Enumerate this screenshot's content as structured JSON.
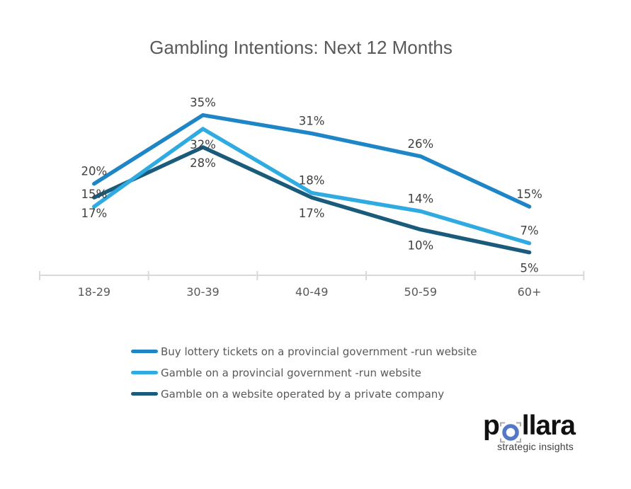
{
  "title": "Gambling Intentions: Next 12 Months",
  "chart_data": {
    "type": "line",
    "title": "Gambling Intentions: Next 12 Months",
    "categories": [
      "18-29",
      "30-39",
      "40-49",
      "50-59",
      "60+"
    ],
    "series": [
      {
        "name": "Buy lottery tickets on a provincial government -run website",
        "color": "#1E86C6",
        "values": [
          20,
          35,
          31,
          26,
          15
        ],
        "label_sides": [
          "above",
          "above",
          "above",
          "above",
          "above"
        ]
      },
      {
        "name": "Gamble on a provincial government -run website",
        "color": "#2FABE1",
        "values": [
          15,
          32,
          18,
          14,
          7
        ],
        "label_sides": [
          "above",
          "below",
          "above",
          "above",
          "above"
        ]
      },
      {
        "name": "Gamble on a website operated by a private company",
        "color": "#1A5B7C",
        "values": [
          17,
          28,
          17,
          10,
          5
        ],
        "label_sides": [
          "below",
          "below",
          "below",
          "below",
          "below"
        ]
      }
    ],
    "data_label_suffix": "%",
    "ylim": [
      0,
      38
    ],
    "grid": false,
    "y_axis_visible": false,
    "legend_position": "bottom-left",
    "colors": {
      "axis_line": "#D9D9D9",
      "tick_mark": "#D9D9D9",
      "data_label": "#404040",
      "category_label": "#595959"
    }
  },
  "logo": {
    "p": "p",
    "rest": "llara",
    "tagline": "strategic insights",
    "ring_color": "#5577C5",
    "bracket_color": "#ABABAB"
  }
}
